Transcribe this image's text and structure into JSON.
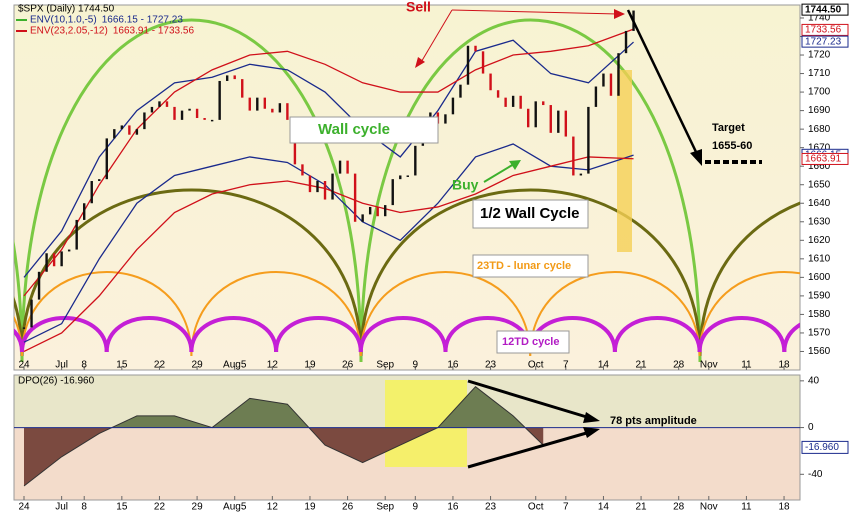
{
  "chart_data": [
    {
      "type": "candlestick",
      "title": "$SPX (Daily) 1744.50",
      "close": [
        1573,
        1588,
        1603,
        1613,
        1606,
        1614,
        1615,
        1631,
        1640,
        1652,
        1653,
        1675,
        1680,
        1682,
        1677,
        1680,
        1689,
        1692,
        1695,
        1692,
        1685,
        1690,
        1691,
        1686,
        1685,
        1685,
        1706,
        1709,
        1707,
        1697,
        1690,
        1697,
        1691,
        1689,
        1694,
        1685,
        1661,
        1655,
        1646,
        1652,
        1642,
        1656,
        1663,
        1656,
        1630,
        1634,
        1638,
        1633,
        1639,
        1653,
        1655,
        1655,
        1671,
        1683,
        1689,
        1683,
        1688,
        1697,
        1704,
        1725,
        1722,
        1710,
        1701,
        1697,
        1692,
        1698,
        1691,
        1681,
        1695,
        1693,
        1678,
        1690,
        1676,
        1655,
        1656,
        1692,
        1703,
        1710,
        1698,
        1721,
        1733,
        1744
      ],
      "xlim": [
        -1.33,
        103.12
      ],
      "xticks": [
        {
          "value": 0,
          "label": "24"
        },
        {
          "value": 5,
          "label": "Jul"
        },
        {
          "value": 8,
          "label": "8"
        },
        {
          "value": 13,
          "label": "15"
        },
        {
          "value": 18,
          "label": "22"
        },
        {
          "value": 23,
          "label": "29"
        },
        {
          "value": 28,
          "label": "Aug5"
        },
        {
          "value": 33,
          "label": "12"
        },
        {
          "value": 38,
          "label": "19"
        },
        {
          "value": 43,
          "label": "26"
        },
        {
          "value": 48,
          "label": "Sep"
        },
        {
          "value": 52,
          "label": "9"
        },
        {
          "value": 57,
          "label": "16"
        },
        {
          "value": 62,
          "label": "23"
        },
        {
          "value": 68,
          "label": "Oct"
        },
        {
          "value": 72,
          "label": "7"
        },
        {
          "value": 77,
          "label": "14"
        },
        {
          "value": 82,
          "label": "21"
        },
        {
          "value": 87,
          "label": "28"
        },
        {
          "value": 91,
          "label": "Nov"
        },
        {
          "value": 96,
          "label": "11"
        },
        {
          "value": 101,
          "label": "18"
        }
      ],
      "ylim": [
        1550,
        1747
      ],
      "yticks": [
        1560,
        1570,
        1580,
        1590,
        1600,
        1610,
        1620,
        1630,
        1640,
        1650,
        1660,
        1670,
        1680,
        1690,
        1700,
        1710,
        1720,
        1730,
        1740
      ],
      "envelope_x": [
        0,
        5,
        10,
        15,
        20,
        25,
        30,
        35,
        40,
        45,
        50,
        55,
        60,
        65,
        70,
        75,
        81
      ],
      "envelopes": [
        {
          "name": "ENV(10,1.0,-5)",
          "legend_values": "1666.15 - 1727.23",
          "color": "#1a2a8c",
          "upper": [
            1600,
            1625,
            1665,
            1690,
            1705,
            1708,
            1715,
            1712,
            1700,
            1680,
            1665,
            1690,
            1722,
            1728,
            1710,
            1705,
            1727
          ],
          "lower": [
            1565,
            1575,
            1610,
            1640,
            1655,
            1660,
            1665,
            1662,
            1650,
            1630,
            1620,
            1640,
            1665,
            1672,
            1660,
            1658,
            1666
          ]
        },
        {
          "name": "ENV(23,2.05,-12)",
          "legend_values": "1663.91 - 1733.56",
          "color": "#d0101a",
          "upper": [
            1590,
            1615,
            1650,
            1680,
            1700,
            1712,
            1720,
            1722,
            1715,
            1705,
            1700,
            1700,
            1712,
            1720,
            1722,
            1725,
            1734
          ],
          "lower": [
            1560,
            1570,
            1590,
            1615,
            1635,
            1645,
            1650,
            1652,
            1648,
            1640,
            1635,
            1638,
            1645,
            1655,
            1660,
            1665,
            1664
          ]
        }
      ],
      "price_labels": [
        {
          "value": 1744.5,
          "label": "1744.50",
          "color": "#000000"
        },
        {
          "value": 1733.56,
          "label": "1733.56",
          "color": "#d0101a"
        },
        {
          "value": 1727.23,
          "label": "1727.23",
          "color": "#1a2a8c"
        },
        {
          "value": 1666.15,
          "label": "1666.15",
          "color": "#1a2a8c"
        },
        {
          "value": 1663.91,
          "label": "1663.91",
          "color": "#d0101a"
        }
      ],
      "annotations": {
        "sell": "Sell",
        "buy": "Buy",
        "wall": "Wall cycle",
        "half_wall": "1/2 Wall Cycle",
        "lunar": "23TD - lunar cycle",
        "short": "12TD cycle",
        "target": "Target",
        "target_range": "1655-60"
      }
    },
    {
      "type": "area",
      "title": "DPO(26) -16.960",
      "x": [
        0,
        5,
        10,
        15,
        20,
        25,
        30,
        35,
        40,
        45,
        50,
        55,
        60,
        65,
        69
      ],
      "values": [
        -50,
        -25,
        -5,
        10,
        10,
        0,
        25,
        20,
        -15,
        -30,
        -15,
        0,
        35,
        10,
        -15
      ],
      "xlim": [
        -1.33,
        103.12
      ],
      "xticks": [
        {
          "value": 0,
          "label": "24"
        },
        {
          "value": 5,
          "label": "Jul"
        },
        {
          "value": 8,
          "label": "8"
        },
        {
          "value": 13,
          "label": "15"
        },
        {
          "value": 18,
          "label": "22"
        },
        {
          "value": 23,
          "label": "29"
        },
        {
          "value": 28,
          "label": "Aug5"
        },
        {
          "value": 33,
          "label": "12"
        },
        {
          "value": 38,
          "label": "19"
        },
        {
          "value": 43,
          "label": "26"
        },
        {
          "value": 48,
          "label": "Sep"
        },
        {
          "value": 52,
          "label": "9"
        },
        {
          "value": 57,
          "label": "16"
        },
        {
          "value": 62,
          "label": "23"
        },
        {
          "value": 68,
          "label": "Oct"
        },
        {
          "value": 72,
          "label": "7"
        },
        {
          "value": 77,
          "label": "14"
        },
        {
          "value": 82,
          "label": "21"
        },
        {
          "value": 87,
          "label": "28"
        },
        {
          "value": 91,
          "label": "Nov"
        },
        {
          "value": 96,
          "label": "11"
        },
        {
          "value": 101,
          "label": "18"
        }
      ],
      "ylim": [
        -62,
        45
      ],
      "yticks": [
        40,
        0,
        -40
      ],
      "last_label": {
        "value": -16.96,
        "label": "-16.960"
      },
      "annotation": "78 pts amplitude"
    }
  ]
}
